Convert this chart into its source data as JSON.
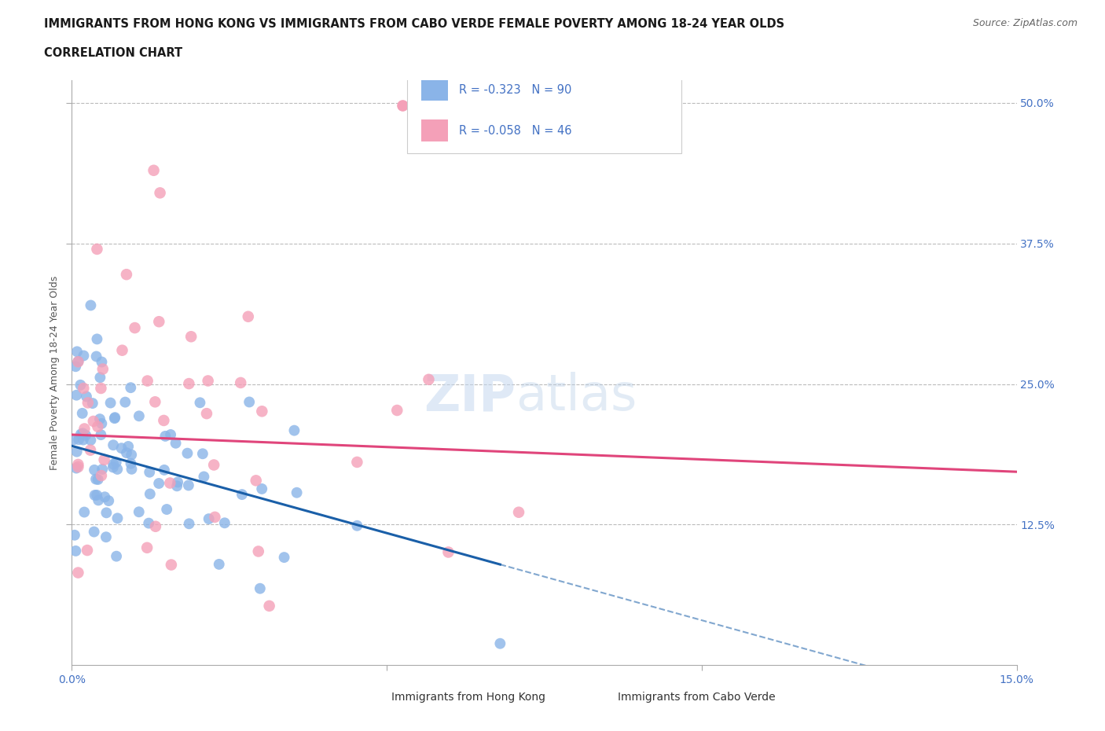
{
  "title_line1": "IMMIGRANTS FROM HONG KONG VS IMMIGRANTS FROM CABO VERDE FEMALE POVERTY AMONG 18-24 YEAR OLDS",
  "title_line2": "CORRELATION CHART",
  "source": "Source: ZipAtlas.com",
  "ylabel": "Female Poverty Among 18-24 Year Olds",
  "xlim": [
    0.0,
    0.15
  ],
  "ylim": [
    0.0,
    0.52
  ],
  "ytick_labels_right": [
    "50.0%",
    "37.5%",
    "25.0%",
    "12.5%"
  ],
  "ytick_positions_right": [
    0.5,
    0.375,
    0.25,
    0.125
  ],
  "hk_color": "#8ab4e8",
  "cv_color": "#f4a0b8",
  "hk_line_color": "#1a5fa8",
  "cv_line_color": "#e0457b",
  "hk_R": -0.323,
  "hk_N": 90,
  "cv_R": -0.058,
  "cv_N": 46,
  "legend_label_hk": "Immigrants from Hong Kong",
  "legend_label_cv": "Immigrants from Cabo Verde",
  "hk_intercept": 0.195,
  "hk_slope": -1.55,
  "hk_line_end_solid": 0.068,
  "cv_intercept": 0.205,
  "cv_slope": -0.22
}
